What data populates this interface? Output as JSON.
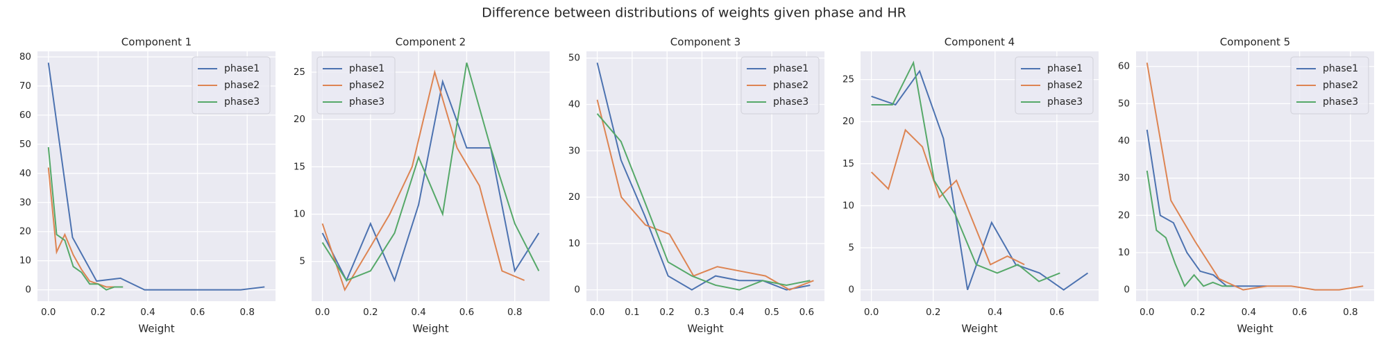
{
  "title": "Difference between distributions of weights given phase and HR",
  "chart_data": [
    {
      "type": "line",
      "title": "Component 1",
      "xlabel": "Weight",
      "grid": true,
      "legend": "upper right",
      "xlim": [
        -0.044,
        0.914
      ],
      "ylim": [
        -3.9,
        81.9
      ],
      "xticks": [
        {
          "value": 0,
          "label": "0.0"
        },
        {
          "value": 0.2,
          "label": "0.2"
        },
        {
          "value": 0.4,
          "label": "0.4"
        },
        {
          "value": 0.6,
          "label": "0.6"
        },
        {
          "value": 0.8,
          "label": "0.8"
        }
      ],
      "yticks": [
        0,
        10,
        20,
        30,
        40,
        50,
        60,
        70,
        80
      ],
      "series": [
        {
          "name": "phase1",
          "color": "#4c72b0",
          "x": [
            0,
            0.097,
            0.194,
            0.29,
            0.387,
            0.484,
            0.58,
            0.677,
            0.774,
            0.87
          ],
          "values": [
            78,
            18,
            3,
            4,
            0,
            0,
            0,
            0,
            0,
            1
          ]
        },
        {
          "name": "phase2",
          "color": "#dd8452",
          "x": [
            0,
            0.033,
            0.066,
            0.1,
            0.133,
            0.166,
            0.2,
            0.233,
            0.266,
            0.3
          ],
          "values": [
            42,
            13,
            19,
            12,
            7,
            3,
            2,
            1,
            1,
            1
          ]
        },
        {
          "name": "phase3",
          "color": "#55a868",
          "x": [
            0,
            0.033,
            0.066,
            0.1,
            0.133,
            0.166,
            0.2,
            0.233,
            0.266,
            0.3
          ],
          "values": [
            49,
            19,
            17,
            8,
            6,
            2,
            2,
            0,
            1,
            1
          ]
        }
      ]
    },
    {
      "type": "line",
      "title": "Component 2",
      "xlabel": "Weight",
      "grid": true,
      "legend": "upper left",
      "xlim": [
        -0.045,
        0.945
      ],
      "ylim": [
        0.8,
        27.2
      ],
      "xticks": [
        {
          "value": 0,
          "label": "0.0"
        },
        {
          "value": 0.2,
          "label": "0.2"
        },
        {
          "value": 0.4,
          "label": "0.4"
        },
        {
          "value": 0.6,
          "label": "0.6"
        },
        {
          "value": 0.8,
          "label": "0.8"
        }
      ],
      "yticks": [
        5,
        10,
        15,
        20,
        25
      ],
      "series": [
        {
          "name": "phase1",
          "color": "#4c72b0",
          "x": [
            0,
            0.1,
            0.2,
            0.3,
            0.4,
            0.5,
            0.6,
            0.7,
            0.8,
            0.9
          ],
          "values": [
            8,
            3,
            9,
            3,
            11,
            24,
            17,
            17,
            4,
            8
          ]
        },
        {
          "name": "phase2",
          "color": "#dd8452",
          "x": [
            0,
            0.093,
            0.187,
            0.28,
            0.373,
            0.467,
            0.56,
            0.653,
            0.747,
            0.84
          ],
          "values": [
            9,
            2,
            6,
            10,
            15,
            25,
            17,
            13,
            4,
            3
          ]
        },
        {
          "name": "phase3",
          "color": "#55a868",
          "x": [
            0,
            0.1,
            0.2,
            0.3,
            0.4,
            0.5,
            0.6,
            0.7,
            0.8,
            0.9
          ],
          "values": [
            7,
            3,
            4,
            8,
            16,
            10,
            26,
            17,
            9,
            4
          ]
        }
      ]
    },
    {
      "type": "line",
      "title": "Component 3",
      "xlabel": "Weight",
      "grid": true,
      "legend": "upper right",
      "xlim": [
        -0.031,
        0.651
      ],
      "ylim": [
        -2.45,
        51.45
      ],
      "xticks": [
        {
          "value": 0,
          "label": "0.0"
        },
        {
          "value": 0.1,
          "label": "0.1"
        },
        {
          "value": 0.2,
          "label": "0.2"
        },
        {
          "value": 0.3,
          "label": "0.3"
        },
        {
          "value": 0.4,
          "label": "0.4"
        },
        {
          "value": 0.5,
          "label": "0.5"
        },
        {
          "value": 0.6,
          "label": "0.6"
        }
      ],
      "yticks": [
        0,
        10,
        20,
        30,
        40,
        50
      ],
      "series": [
        {
          "name": "phase1",
          "color": "#4c72b0",
          "x": [
            0,
            0.068,
            0.136,
            0.203,
            0.271,
            0.339,
            0.407,
            0.474,
            0.542,
            0.61
          ],
          "values": [
            49,
            28,
            16,
            3,
            0,
            3,
            2,
            2,
            0,
            1
          ]
        },
        {
          "name": "phase2",
          "color": "#dd8452",
          "x": [
            0,
            0.069,
            0.138,
            0.207,
            0.276,
            0.344,
            0.413,
            0.482,
            0.551,
            0.62
          ],
          "values": [
            41,
            20,
            14,
            12,
            3,
            5,
            4,
            3,
            0,
            2
          ]
        },
        {
          "name": "phase3",
          "color": "#55a868",
          "x": [
            0,
            0.068,
            0.136,
            0.203,
            0.271,
            0.339,
            0.407,
            0.474,
            0.542,
            0.61
          ],
          "values": [
            38,
            32,
            19,
            6,
            3,
            1,
            0,
            2,
            1,
            2
          ]
        }
      ]
    },
    {
      "type": "line",
      "title": "Component 4",
      "xlabel": "Weight",
      "grid": true,
      "legend": "upper right",
      "xlim": [
        -0.035,
        0.735
      ],
      "ylim": [
        -1.35,
        28.35
      ],
      "xticks": [
        {
          "value": 0,
          "label": "0.0"
        },
        {
          "value": 0.2,
          "label": "0.2"
        },
        {
          "value": 0.4,
          "label": "0.4"
        },
        {
          "value": 0.6,
          "label": "0.6"
        }
      ],
      "yticks": [
        0,
        5,
        10,
        15,
        20,
        25
      ],
      "series": [
        {
          "name": "phase1",
          "color": "#4c72b0",
          "x": [
            0,
            0.078,
            0.156,
            0.233,
            0.311,
            0.389,
            0.467,
            0.544,
            0.622,
            0.7
          ],
          "values": [
            23,
            22,
            26,
            18,
            0,
            8,
            3,
            2,
            0,
            2
          ]
        },
        {
          "name": "phase2",
          "color": "#dd8452",
          "x": [
            0,
            0.055,
            0.11,
            0.165,
            0.22,
            0.275,
            0.33,
            0.385,
            0.44,
            0.495
          ],
          "values": [
            14,
            12,
            19,
            17,
            11,
            13,
            8,
            3,
            4,
            3
          ]
        },
        {
          "name": "phase3",
          "color": "#55a868",
          "x": [
            0,
            0.068,
            0.136,
            0.203,
            0.271,
            0.339,
            0.407,
            0.474,
            0.542,
            0.61
          ],
          "values": [
            22,
            22,
            27,
            13,
            9,
            3,
            2,
            3,
            1,
            2
          ]
        }
      ]
    },
    {
      "type": "line",
      "title": "Component 5",
      "xlabel": "Weight",
      "grid": true,
      "legend": "upper right",
      "xlim": [
        -0.043,
        0.893
      ],
      "ylim": [
        -3.05,
        64.05
      ],
      "xticks": [
        {
          "value": 0,
          "label": "0.0"
        },
        {
          "value": 0.2,
          "label": "0.2"
        },
        {
          "value": 0.4,
          "label": "0.4"
        },
        {
          "value": 0.6,
          "label": "0.6"
        },
        {
          "value": 0.8,
          "label": "0.8"
        }
      ],
      "yticks": [
        0,
        10,
        20,
        30,
        40,
        50,
        60
      ],
      "series": [
        {
          "name": "phase1",
          "color": "#4c72b0",
          "x": [
            0,
            0.052,
            0.104,
            0.157,
            0.209,
            0.261,
            0.313,
            0.366,
            0.418,
            0.47
          ],
          "values": [
            43,
            20,
            18,
            10,
            5,
            4,
            1,
            1,
            1,
            1
          ]
        },
        {
          "name": "phase2",
          "color": "#dd8452",
          "x": [
            0,
            0.094,
            0.189,
            0.283,
            0.378,
            0.472,
            0.567,
            0.661,
            0.756,
            0.85
          ],
          "values": [
            61,
            24,
            13,
            3,
            0,
            1,
            1,
            0,
            0,
            1
          ]
        },
        {
          "name": "phase3",
          "color": "#55a868",
          "x": [
            0,
            0.037,
            0.074,
            0.111,
            0.148,
            0.185,
            0.222,
            0.259,
            0.296,
            0.333
          ],
          "values": [
            32,
            16,
            14,
            7,
            1,
            4,
            1,
            2,
            1,
            1
          ]
        }
      ]
    }
  ]
}
